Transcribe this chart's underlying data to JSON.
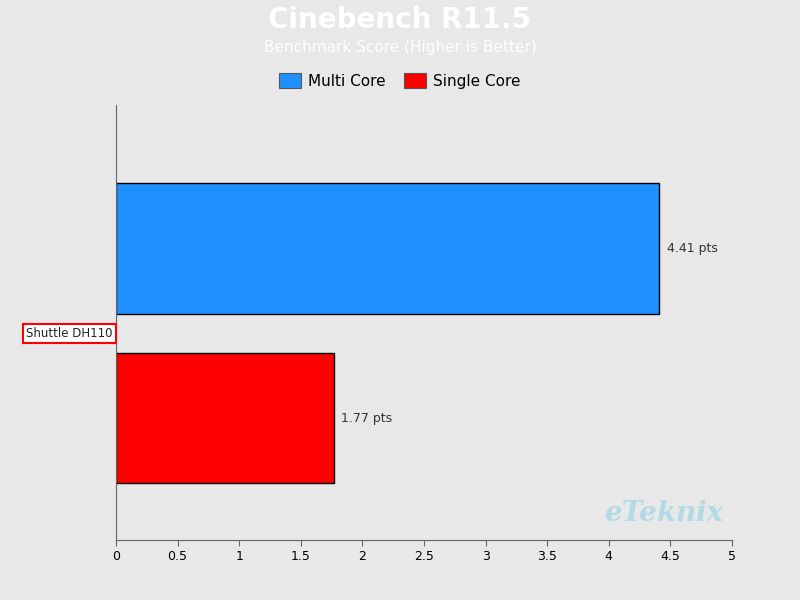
{
  "title": "Cinebench R11.5",
  "subtitle": "Benchmark Score (Higher is Better)",
  "title_bg_color": "#19AADF",
  "title_text_color": "#FFFFFF",
  "bg_color": "#E8E8E8",
  "plot_bg_color": "#E8E8E8",
  "bar_label": "Shuttle DH110",
  "multi_core_value": 4.41,
  "single_core_value": 1.77,
  "multi_core_color": "#1E90FF",
  "single_core_color": "#FF0000",
  "multi_core_label": "Multi Core",
  "single_core_label": "Single Core",
  "xlim": [
    0,
    5
  ],
  "xticks": [
    0,
    0.5,
    1,
    1.5,
    2,
    2.5,
    3,
    3.5,
    4,
    4.5,
    5
  ],
  "bar_edge_color": "#000000",
  "watermark": "eTeknix",
  "watermark_color": "#ADD8E6",
  "label_fontsize": 9,
  "tick_fontsize": 9,
  "legend_fontsize": 11,
  "title_fontsize": 20,
  "subtitle_fontsize": 11
}
